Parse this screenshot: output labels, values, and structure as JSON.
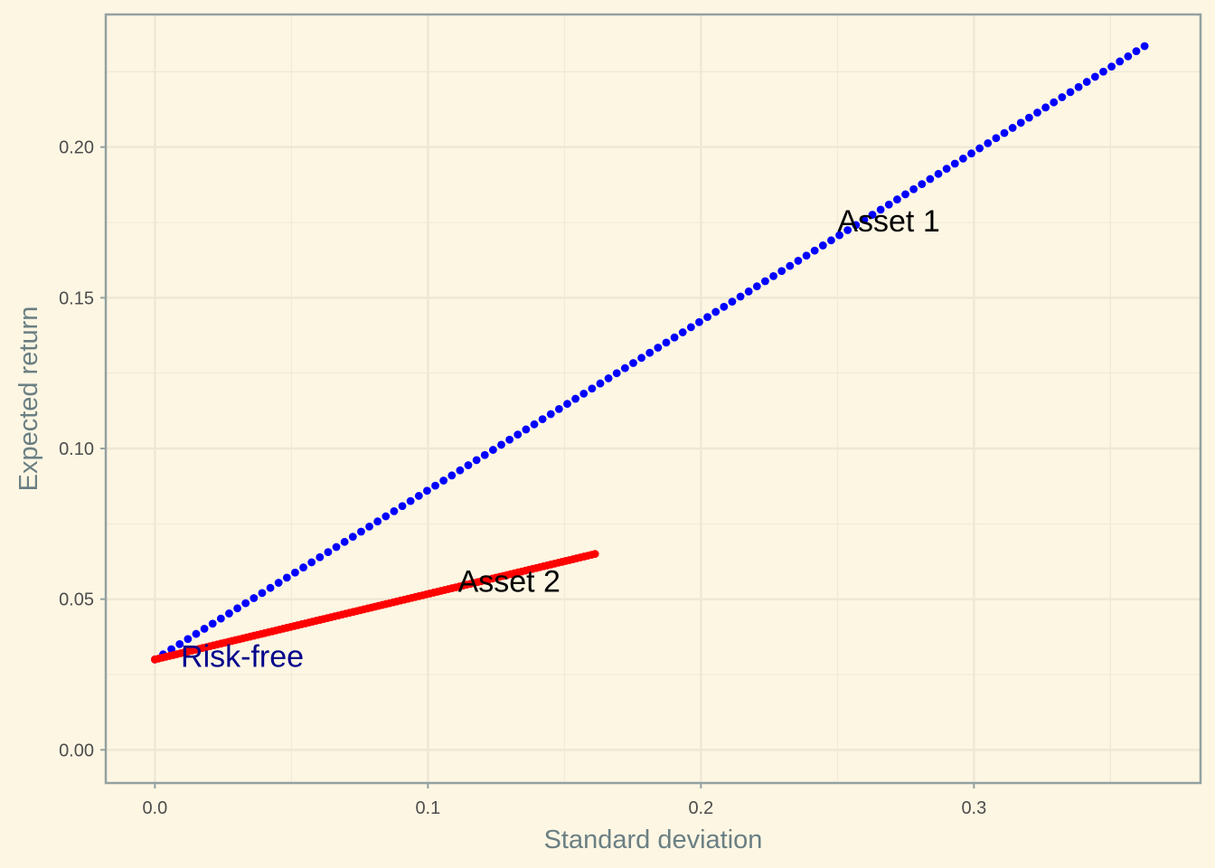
{
  "chart_data": {
    "type": "scatter",
    "title": "",
    "xlabel": "Standard deviation",
    "ylabel": "Expected return",
    "xlim": [
      -0.018,
      0.383
    ],
    "ylim": [
      -0.011,
      0.244
    ],
    "x_ticks": [
      0.0,
      0.1,
      0.2,
      0.3
    ],
    "x_tick_labels": [
      "0.0",
      "0.1",
      "0.2",
      "0.3"
    ],
    "y_ticks": [
      0.0,
      0.05,
      0.1,
      0.15,
      0.2
    ],
    "y_tick_labels": [
      "0.00",
      "0.05",
      "0.10",
      "0.15",
      "0.20"
    ],
    "grid": true,
    "background_color": "#FDF6E3",
    "panel_border_color": "#93A1A1",
    "grid_color": "#EEE8D5",
    "series": [
      {
        "color": "#0000FF",
        "x_start": 0.0,
        "x_end": 0.3625,
        "y_start": 0.03,
        "y_end": 0.2335,
        "n_points": 120
      },
      {
        "color": "#FF0000",
        "x_start": 0.0,
        "x_end": 0.1612,
        "y_start": 0.03,
        "y_end": 0.065,
        "n_points": 120
      }
    ],
    "annotations": [
      {
        "text": "Asset 1",
        "x": 0.25,
        "y": 0.172,
        "color": "#000000"
      },
      {
        "text": "Asset 2",
        "x": 0.111,
        "y": 0.0525,
        "color": "#000000"
      },
      {
        "text": "Risk-free",
        "x": 0.0095,
        "y": 0.0275,
        "color": "#00008B"
      }
    ]
  }
}
